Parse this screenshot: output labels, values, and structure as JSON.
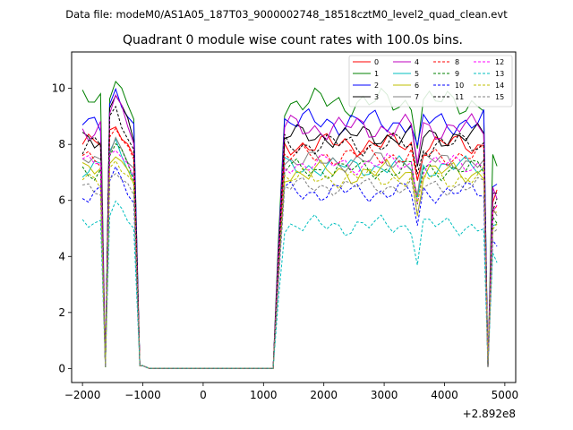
{
  "suptitle": "Data file: modeM0/AS1A05_187T03_9000002748_18518cztM0_level2_quad_clean.evt",
  "chart_data": {
    "type": "line",
    "title": "Quadrant 0 module wise count rates with 100.0s bins.",
    "xlabel": "",
    "ylabel": "",
    "offset_text": "+2.892e8",
    "xlim": [
      -2180,
      5180
    ],
    "ylim": [
      -0.5,
      11.3
    ],
    "xticks": [
      -2000,
      -1000,
      0,
      1000,
      2000,
      3000,
      4000,
      5000
    ],
    "xtick_labels": [
      "−2000",
      "−1000",
      "0",
      "1000",
      "2000",
      "3000",
      "4000",
      "5000"
    ],
    "yticks": [
      0,
      2,
      4,
      6,
      8,
      10
    ],
    "ytick_labels": [
      "0",
      "2",
      "4",
      "6",
      "8",
      "10"
    ],
    "grid": false,
    "legend_position": "top-right",
    "x": [
      -2000,
      -1900,
      -1800,
      -1700,
      -1620,
      -1550,
      -1450,
      -1350,
      -1250,
      -1150,
      -1050,
      -1000,
      -900,
      -800,
      -700,
      -600,
      -500,
      -400,
      -300,
      -200,
      -100,
      0,
      100,
      200,
      300,
      400,
      500,
      600,
      700,
      800,
      900,
      1000,
      1100,
      1160,
      1250,
      1350,
      1450,
      1550,
      1650,
      1750,
      1850,
      1950,
      2050,
      2150,
      2250,
      2350,
      2450,
      2550,
      2650,
      2750,
      2850,
      2950,
      3050,
      3150,
      3250,
      3350,
      3450,
      3550,
      3650,
      3750,
      3850,
      3950,
      4050,
      4150,
      4250,
      4350,
      4450,
      4550,
      4650,
      4720,
      4800,
      4870
    ],
    "series": [
      {
        "name": "0",
        "color": "#ff0000",
        "dash": "solid",
        "base": 8.0,
        "peak": 8.8,
        "noise": 0.45,
        "phase": 0.0
      },
      {
        "name": "1",
        "color": "#008000",
        "dash": "solid",
        "base": 9.5,
        "peak": 10.4,
        "noise": 0.55,
        "phase": 1.1
      },
      {
        "name": "2",
        "color": "#0000ff",
        "dash": "solid",
        "base": 8.8,
        "peak": 9.9,
        "noise": 0.5,
        "phase": 2.3
      },
      {
        "name": "3",
        "color": "#000000",
        "dash": "solid",
        "base": 8.3,
        "peak": 9.8,
        "noise": 0.45,
        "phase": 3.4
      },
      {
        "name": "4",
        "color": "#bf00bf",
        "dash": "solid",
        "base": 8.6,
        "peak": 9.6,
        "noise": 0.5,
        "phase": 4.2
      },
      {
        "name": "5",
        "color": "#00bfbf",
        "dash": "solid",
        "base": 7.2,
        "peak": 8.0,
        "noise": 0.4,
        "phase": 5.0
      },
      {
        "name": "6",
        "color": "#bfbf00",
        "dash": "solid",
        "base": 7.0,
        "peak": 7.8,
        "noise": 0.45,
        "phase": 0.6
      },
      {
        "name": "7",
        "color": "#808080",
        "dash": "solid",
        "base": 7.4,
        "peak": 8.2,
        "noise": 0.4,
        "phase": 1.7
      },
      {
        "name": "8",
        "color": "#ff0000",
        "dash": "dashed",
        "base": 7.6,
        "peak": 8.6,
        "noise": 0.4,
        "phase": 2.9
      },
      {
        "name": "9",
        "color": "#008000",
        "dash": "dashed",
        "base": 7.1,
        "peak": 8.0,
        "noise": 0.4,
        "phase": 3.8
      },
      {
        "name": "10",
        "color": "#0000ff",
        "dash": "dashed",
        "base": 6.3,
        "peak": 7.0,
        "noise": 0.4,
        "phase": 4.6
      },
      {
        "name": "11",
        "color": "#000000",
        "dash": "dashed",
        "base": 8.0,
        "peak": 9.3,
        "noise": 0.45,
        "phase": 5.5
      },
      {
        "name": "12",
        "color": "#ff00ff",
        "dash": "dashed",
        "base": 7.3,
        "peak": 8.0,
        "noise": 0.4,
        "phase": 0.3
      },
      {
        "name": "13",
        "color": "#00bfbf",
        "dash": "dashed",
        "base": 5.1,
        "peak": 6.0,
        "noise": 0.4,
        "phase": 1.4
      },
      {
        "name": "14",
        "color": "#bfbf00",
        "dash": "dashed",
        "base": 6.8,
        "peak": 7.4,
        "noise": 0.4,
        "phase": 2.6
      },
      {
        "name": "15",
        "color": "#808080",
        "dash": "dashed",
        "base": 6.5,
        "peak": 7.0,
        "noise": 0.35,
        "phase": 3.1
      }
    ]
  }
}
